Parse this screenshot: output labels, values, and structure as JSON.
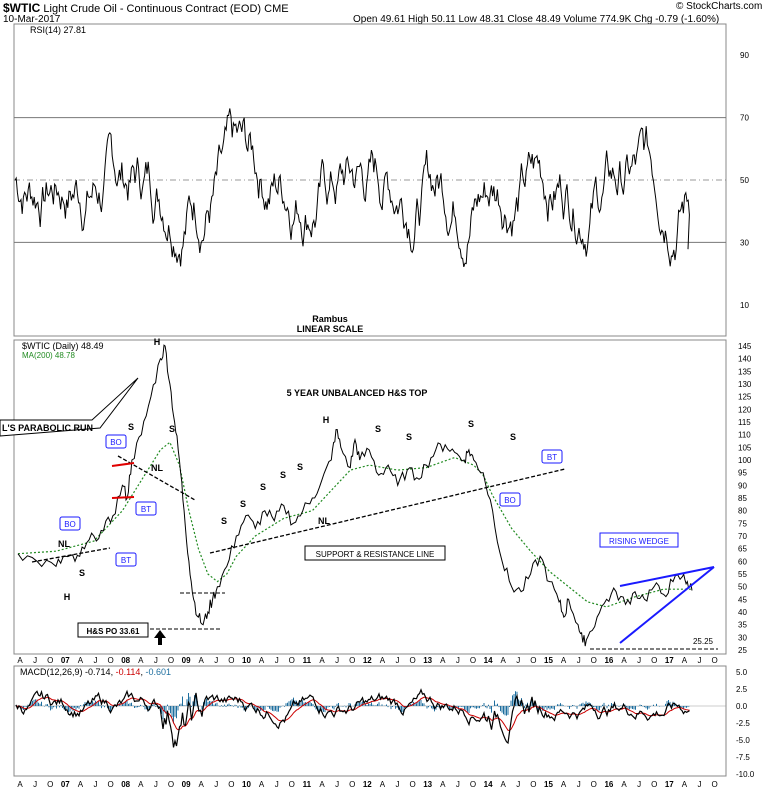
{
  "header": {
    "symbol": "$WTIC",
    "name": "Light Crude Oil - Continuous Contract (EOD)",
    "exchange": "CME",
    "date": "10-Mar-2017",
    "quote": "Open 49.61  High 50.11  Low 48.31  Close 48.49  Volume 774.9K  Chg -0.79 (-1.60%)",
    "copyright": "© StockCharts.com"
  },
  "colors": {
    "price": "#000000",
    "ma200": "#228b22",
    "macd": "#000000",
    "signal": "#cc0000",
    "hist": "#1f6f9f",
    "wedge": "#1a1aff",
    "trend": "#000000",
    "box_border": "#1a1aff",
    "red_mark": "#e00000"
  },
  "chart_data": [
    {
      "type": "line",
      "title": "RSI(14) 27.81",
      "ylim": [
        0,
        100
      ],
      "yticks": [
        "90",
        "70",
        "50",
        "30",
        "10"
      ],
      "reference_lines": [
        70,
        50,
        30
      ],
      "annotations": [
        "Rambus",
        "LINEAR SCALE"
      ],
      "series": [
        {
          "name": "RSI(14)",
          "last": 27.81
        }
      ]
    },
    {
      "type": "line",
      "title": "$WTIC (Daily) 48.49",
      "legend": [
        {
          "name": "$WTIC (Daily) 48.49"
        },
        {
          "name": "MA(200) 48.78"
        }
      ],
      "ylim": [
        25,
        145
      ],
      "yticks": [
        "145",
        "140",
        "135",
        "130",
        "125",
        "120",
        "115",
        "110",
        "105",
        "100",
        "95",
        "90",
        "85",
        "80",
        "75",
        "70",
        "65",
        "60",
        "55",
        "50",
        "45",
        "40",
        "35",
        "30",
        "25"
      ],
      "xticks": [
        "A",
        "J",
        "O",
        "07",
        "A",
        "J",
        "O",
        "08",
        "A",
        "J",
        "O",
        "09",
        "A",
        "J",
        "O",
        "10",
        "A",
        "J",
        "O",
        "11",
        "A",
        "J",
        "O",
        "12",
        "A",
        "J",
        "O",
        "13",
        "A",
        "J",
        "O",
        "14",
        "A",
        "J",
        "O",
        "15",
        "A",
        "J",
        "O",
        "16",
        "A",
        "J",
        "O",
        "17",
        "A",
        "J",
        "O"
      ],
      "price_points": [
        [
          0,
          63
        ],
        [
          2,
          60
        ],
        [
          4,
          58
        ],
        [
          5,
          62
        ],
        [
          6,
          60
        ],
        [
          7,
          65
        ],
        [
          8,
          70
        ],
        [
          9,
          72
        ],
        [
          10,
          78
        ],
        [
          11,
          90
        ],
        [
          11.5,
          85
        ],
        [
          12,
          100
        ],
        [
          13,
          110
        ],
        [
          14,
          125
        ],
        [
          15,
          140
        ],
        [
          15.5,
          145
        ],
        [
          16,
          130
        ],
        [
          16.5,
          115
        ],
        [
          17,
          100
        ],
        [
          17.5,
          80
        ],
        [
          18,
          60
        ],
        [
          18.5,
          45
        ],
        [
          19,
          38
        ],
        [
          19.5,
          35
        ],
        [
          20,
          40
        ],
        [
          20.5,
          45
        ],
        [
          21,
          50
        ],
        [
          22,
          58
        ],
        [
          23,
          70
        ],
        [
          24,
          78
        ],
        [
          25,
          73
        ],
        [
          26,
          80
        ],
        [
          27,
          76
        ],
        [
          28,
          82
        ],
        [
          29,
          75
        ],
        [
          30,
          80
        ],
        [
          31,
          85
        ],
        [
          32,
          92
        ],
        [
          33,
          100
        ],
        [
          33.5,
          112
        ],
        [
          34,
          105
        ],
        [
          35,
          97
        ],
        [
          35.5,
          108
        ],
        [
          36,
          100
        ],
        [
          37,
          104
        ],
        [
          38,
          94
        ],
        [
          39,
          98
        ],
        [
          40,
          90
        ],
        [
          41,
          96
        ],
        [
          42,
          93
        ],
        [
          43,
          98
        ],
        [
          44,
          104
        ],
        [
          45,
          106
        ],
        [
          46,
          103
        ],
        [
          47,
          100
        ],
        [
          47.5,
          104
        ],
        [
          48,
          100
        ],
        [
          49,
          95
        ],
        [
          50,
          80
        ],
        [
          51,
          60
        ],
        [
          52,
          50
        ],
        [
          53,
          48
        ],
        [
          54,
          55
        ],
        [
          55,
          62
        ],
        [
          56,
          52
        ],
        [
          57,
          44
        ],
        [
          57.5,
          38
        ],
        [
          58,
          45
        ],
        [
          59,
          35
        ],
        [
          59.5,
          28
        ],
        [
          60,
          30
        ],
        [
          61,
          38
        ],
        [
          62,
          45
        ],
        [
          63,
          48
        ],
        [
          64,
          43
        ],
        [
          65,
          48
        ],
        [
          66,
          45
        ],
        [
          67,
          50
        ],
        [
          68,
          47
        ],
        [
          69,
          52
        ],
        [
          70,
          54
        ],
        [
          70.5,
          52
        ],
        [
          71,
          48.5
        ]
      ],
      "ma200_points": [
        [
          0,
          63
        ],
        [
          4,
          64
        ],
        [
          8,
          68
        ],
        [
          11,
          80
        ],
        [
          13,
          92
        ],
        [
          15,
          104
        ],
        [
          16,
          107
        ],
        [
          17,
          98
        ],
        [
          18,
          80
        ],
        [
          19,
          65
        ],
        [
          20,
          55
        ],
        [
          21,
          52
        ],
        [
          22,
          55
        ],
        [
          23,
          62
        ],
        [
          25,
          70
        ],
        [
          28,
          77
        ],
        [
          31,
          80
        ],
        [
          33,
          88
        ],
        [
          35,
          96
        ],
        [
          37,
          98
        ],
        [
          40,
          96
        ],
        [
          43,
          97
        ],
        [
          46,
          101
        ],
        [
          48,
          98
        ],
        [
          49,
          94
        ],
        [
          50,
          86
        ],
        [
          52,
          73
        ],
        [
          54,
          64
        ],
        [
          56,
          56
        ],
        [
          58,
          50
        ],
        [
          60,
          44
        ],
        [
          62,
          42
        ],
        [
          65,
          46
        ],
        [
          68,
          49
        ],
        [
          71,
          49
        ]
      ],
      "annotations": [
        {
          "text": "5 YEAR UNBALANCED H&S TOP"
        },
        {
          "text": "H"
        },
        {
          "text": "S"
        },
        {
          "text": "S"
        },
        {
          "text": "S"
        },
        {
          "text": "S"
        },
        {
          "text": "S"
        },
        {
          "text": "S"
        },
        {
          "text": "S"
        },
        {
          "text": "S"
        },
        {
          "text": "S"
        },
        {
          "text": "S"
        },
        {
          "text": "H"
        },
        {
          "text": "S"
        },
        {
          "text": "S"
        },
        {
          "text": "NL"
        },
        {
          "text": "NL"
        },
        {
          "text": "NL"
        },
        {
          "text": "H"
        },
        {
          "text": "L'S PARABOLIC RUN"
        },
        {
          "text": "BO"
        },
        {
          "text": "BO"
        },
        {
          "text": "BT"
        },
        {
          "text": "BT"
        },
        {
          "text": "BT"
        },
        {
          "text": "BO"
        },
        {
          "text": "SUPPORT & RESISTANCE LINE"
        },
        {
          "text": "H&S PO 33.61"
        },
        {
          "text": "RISING WEDGE"
        },
        {
          "text": "25.25"
        }
      ]
    },
    {
      "type": "line",
      "title": "MACD(12,26,9) -0.714, -0.114, -0.601",
      "legend_values": [
        "-0.714",
        "-0.114",
        "-0.601"
      ],
      "ylim": [
        -10,
        5
      ],
      "yticks": [
        "5.0",
        "2.5",
        "0.0",
        "-2.5",
        "-5.0",
        "-7.5",
        "-10.0"
      ],
      "xticks": [
        "A",
        "J",
        "O",
        "07",
        "A",
        "J",
        "O",
        "08",
        "A",
        "J",
        "O",
        "09",
        "A",
        "J",
        "O",
        "10",
        "A",
        "J",
        "O",
        "11",
        "A",
        "J",
        "O",
        "12",
        "A",
        "J",
        "O",
        "13",
        "A",
        "J",
        "O",
        "14",
        "A",
        "J",
        "O",
        "15",
        "A",
        "J",
        "O",
        "16",
        "A",
        "J",
        "O",
        "17",
        "A",
        "J",
        "O"
      ]
    }
  ]
}
